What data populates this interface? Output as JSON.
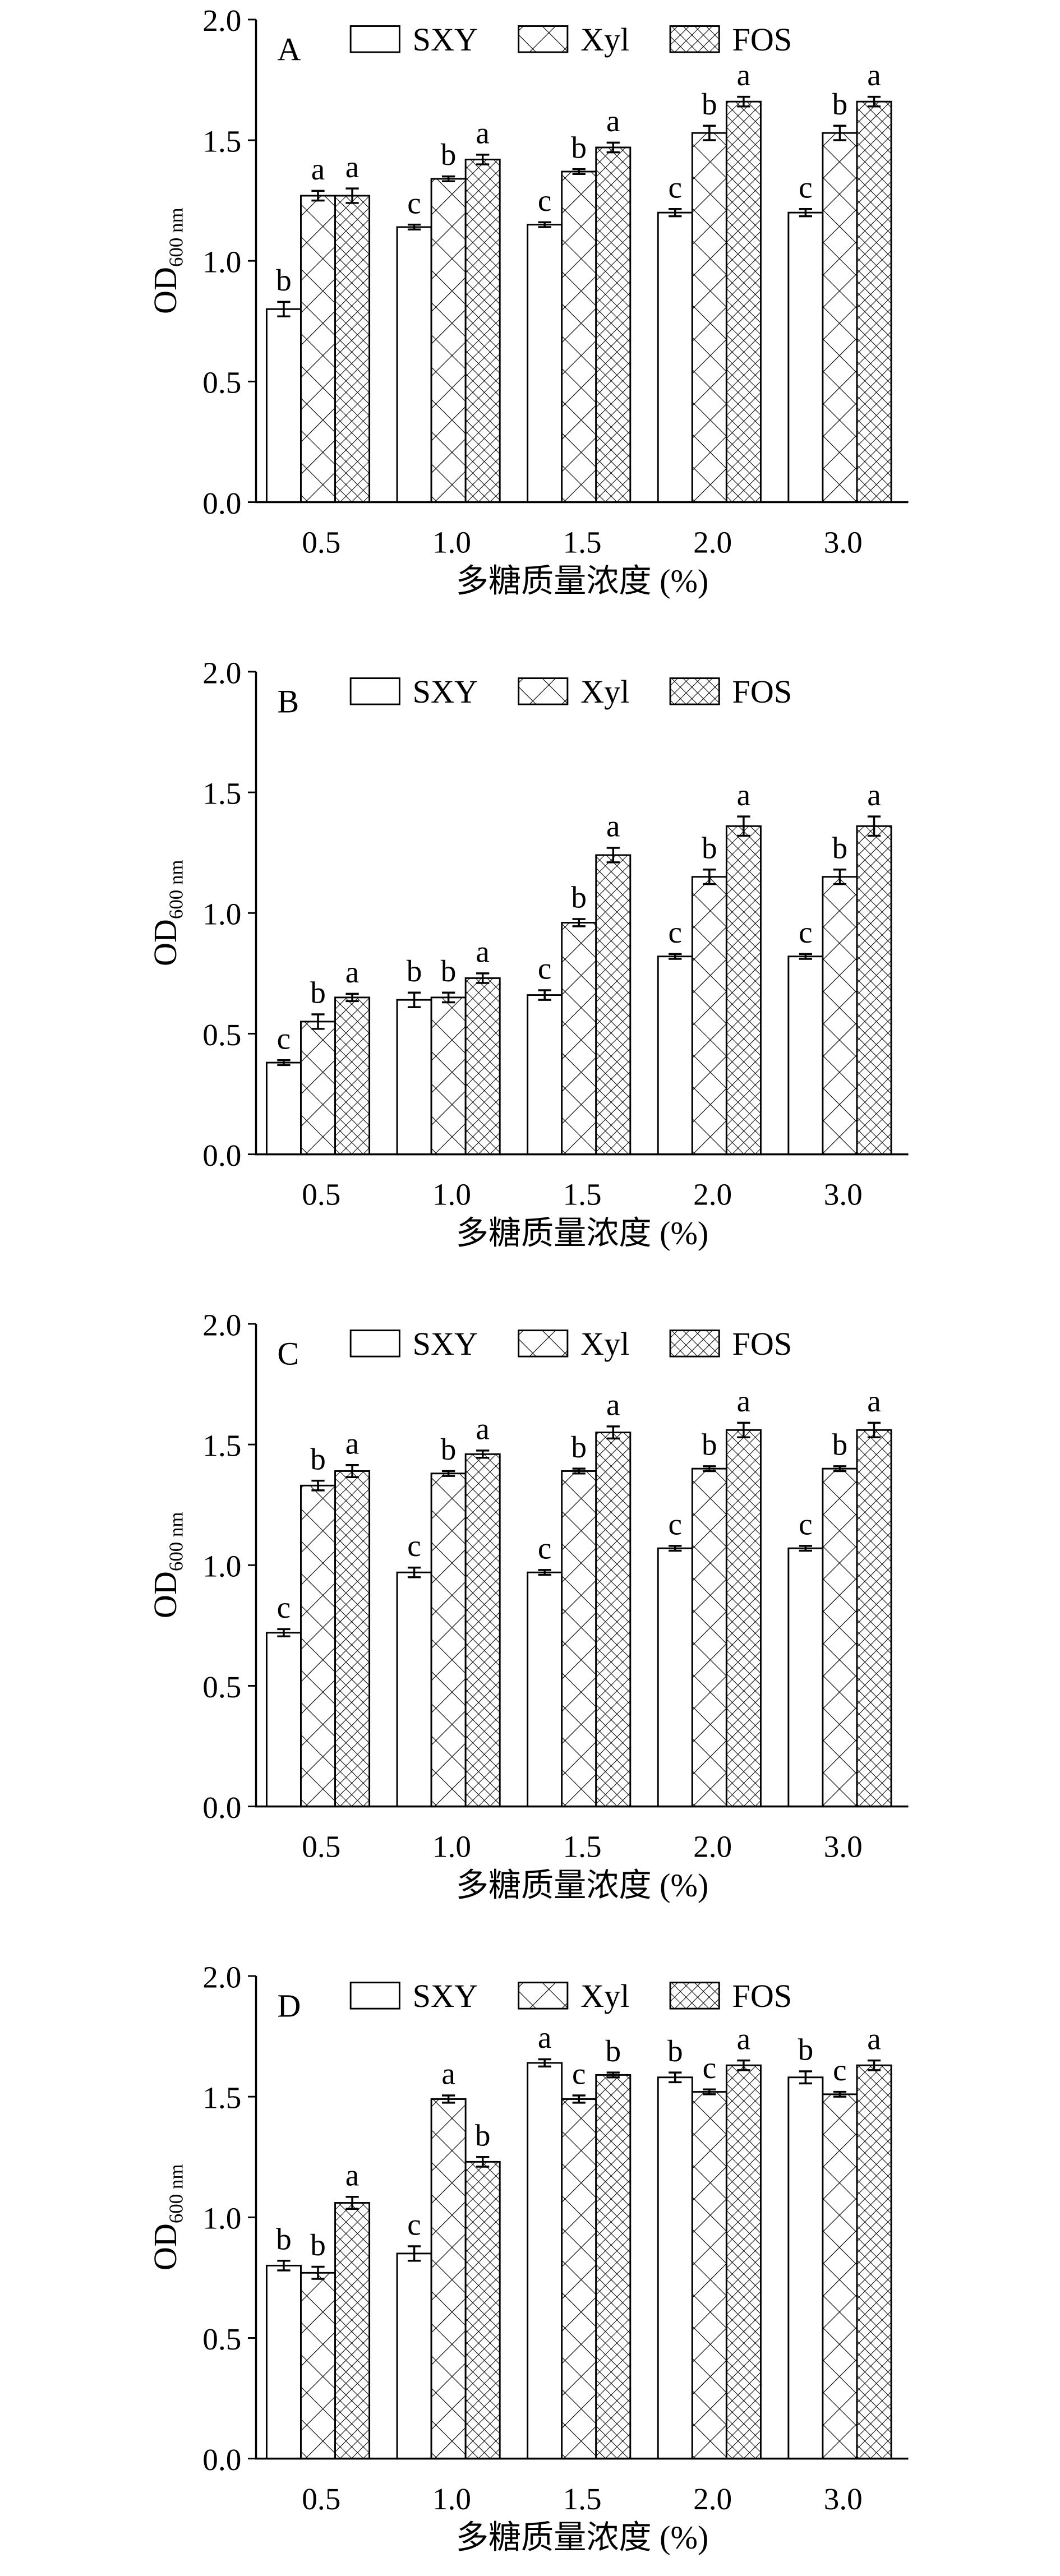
{
  "chart_data": [
    {
      "type": "bar",
      "panel": "A",
      "x_label": "多糖质量浓度 (%)",
      "y_label": "OD",
      "y_label_sub": "600 nm",
      "categories": [
        "0.5",
        "1.0",
        "1.5",
        "2.0",
        "3.0"
      ],
      "ylim": [
        0,
        2
      ],
      "yticks": [
        {
          "value": 0,
          "label": "0.0"
        },
        {
          "value": 0.5,
          "label": "0.5"
        },
        {
          "value": 1,
          "label": "1.0"
        },
        {
          "value": 1.5,
          "label": "1.5"
        },
        {
          "value": 2,
          "label": "2.0"
        }
      ],
      "series": [
        {
          "name": "SXY",
          "color": "#ffffff",
          "hatch": "none",
          "values": [
            0.8,
            1.14,
            1.15,
            1.2,
            1.2
          ],
          "errors": [
            0.03,
            0.01,
            0.01,
            0.015,
            0.015
          ],
          "letters": [
            "b",
            "c",
            "c",
            "c",
            "c"
          ]
        },
        {
          "name": "Xyl",
          "color": "#ffffff",
          "hatch": "cross",
          "values": [
            1.27,
            1.34,
            1.37,
            1.53,
            1.53
          ],
          "errors": [
            0.02,
            0.01,
            0.01,
            0.03,
            0.03
          ],
          "letters": [
            "a",
            "b",
            "b",
            "b",
            "b"
          ]
        },
        {
          "name": "FOS",
          "color": "#ffffff",
          "hatch": "fine-cross",
          "values": [
            1.27,
            1.42,
            1.47,
            1.66,
            1.66
          ],
          "errors": [
            0.03,
            0.02,
            0.02,
            0.02,
            0.02
          ],
          "letters": [
            "a",
            "a",
            "a",
            "a",
            "a"
          ]
        }
      ]
    },
    {
      "type": "bar",
      "panel": "B",
      "x_label": "多糖质量浓度 (%)",
      "y_label": "OD",
      "y_label_sub": "600 nm",
      "categories": [
        "0.5",
        "1.0",
        "1.5",
        "2.0",
        "3.0"
      ],
      "ylim": [
        0,
        2
      ],
      "yticks": [
        {
          "value": 0,
          "label": "0.0"
        },
        {
          "value": 0.5,
          "label": "0.5"
        },
        {
          "value": 1,
          "label": "1.0"
        },
        {
          "value": 1.5,
          "label": "1.5"
        },
        {
          "value": 2,
          "label": "2.0"
        }
      ],
      "series": [
        {
          "name": "SXY",
          "color": "#ffffff",
          "hatch": "none",
          "values": [
            0.38,
            0.64,
            0.66,
            0.82,
            0.82
          ],
          "errors": [
            0.01,
            0.03,
            0.02,
            0.01,
            0.01
          ],
          "letters": [
            "c",
            "b",
            "c",
            "c",
            "c"
          ]
        },
        {
          "name": "Xyl",
          "color": "#ffffff",
          "hatch": "cross",
          "values": [
            0.55,
            0.65,
            0.96,
            1.15,
            1.15
          ],
          "errors": [
            0.03,
            0.02,
            0.015,
            0.03,
            0.03
          ],
          "letters": [
            "b",
            "b",
            "b",
            "b",
            "b"
          ]
        },
        {
          "name": "FOS",
          "color": "#ffffff",
          "hatch": "fine-cross",
          "values": [
            0.65,
            0.73,
            1.24,
            1.36,
            1.36
          ],
          "errors": [
            0.015,
            0.02,
            0.03,
            0.04,
            0.04
          ],
          "letters": [
            "a",
            "a",
            "a",
            "a",
            "a"
          ]
        }
      ]
    },
    {
      "type": "bar",
      "panel": "C",
      "x_label": "多糖质量浓度 (%)",
      "y_label": "OD",
      "y_label_sub": "600 nm",
      "categories": [
        "0.5",
        "1.0",
        "1.5",
        "2.0",
        "3.0"
      ],
      "ylim": [
        0,
        2
      ],
      "yticks": [
        {
          "value": 0,
          "label": "0.0"
        },
        {
          "value": 0.5,
          "label": "0.5"
        },
        {
          "value": 1,
          "label": "1.0"
        },
        {
          "value": 1.5,
          "label": "1.5"
        },
        {
          "value": 2,
          "label": "2.0"
        }
      ],
      "series": [
        {
          "name": "SXY",
          "color": "#ffffff",
          "hatch": "none",
          "values": [
            0.72,
            0.97,
            0.97,
            1.07,
            1.07
          ],
          "errors": [
            0.015,
            0.02,
            0.01,
            0.01,
            0.01
          ],
          "letters": [
            "c",
            "c",
            "c",
            "c",
            "c"
          ]
        },
        {
          "name": "Xyl",
          "color": "#ffffff",
          "hatch": "cross",
          "values": [
            1.33,
            1.38,
            1.39,
            1.4,
            1.4
          ],
          "errors": [
            0.02,
            0.01,
            0.01,
            0.01,
            0.01
          ],
          "letters": [
            "b",
            "b",
            "b",
            "b",
            "b"
          ]
        },
        {
          "name": "FOS",
          "color": "#ffffff",
          "hatch": "fine-cross",
          "values": [
            1.39,
            1.46,
            1.55,
            1.56,
            1.56
          ],
          "errors": [
            0.025,
            0.015,
            0.025,
            0.03,
            0.03
          ],
          "letters": [
            "a",
            "a",
            "a",
            "a",
            "a"
          ]
        }
      ]
    },
    {
      "type": "bar",
      "panel": "D",
      "x_label": "多糖质量浓度 (%)",
      "y_label": "OD",
      "y_label_sub": "600 nm",
      "categories": [
        "0.5",
        "1.0",
        "1.5",
        "2.0",
        "3.0"
      ],
      "ylim": [
        0,
        2
      ],
      "yticks": [
        {
          "value": 0,
          "label": "0.0"
        },
        {
          "value": 0.5,
          "label": "0.5"
        },
        {
          "value": 1,
          "label": "1.0"
        },
        {
          "value": 1.5,
          "label": "1.5"
        },
        {
          "value": 2,
          "label": "2.0"
        }
      ],
      "series": [
        {
          "name": "SXY",
          "color": "#ffffff",
          "hatch": "none",
          "values": [
            0.8,
            0.85,
            1.64,
            1.58,
            1.58
          ],
          "errors": [
            0.02,
            0.03,
            0.015,
            0.02,
            0.025
          ],
          "letters": [
            "b",
            "c",
            "a",
            "b",
            "b"
          ]
        },
        {
          "name": "Xyl",
          "color": "#ffffff",
          "hatch": "cross",
          "values": [
            0.77,
            1.49,
            1.49,
            1.52,
            1.51
          ],
          "errors": [
            0.025,
            0.015,
            0.015,
            0.01,
            0.01
          ],
          "letters": [
            "b",
            "a",
            "c",
            "c",
            "c"
          ]
        },
        {
          "name": "FOS",
          "color": "#ffffff",
          "hatch": "fine-cross",
          "values": [
            1.06,
            1.23,
            1.59,
            1.63,
            1.63
          ],
          "errors": [
            0.025,
            0.02,
            0.01,
            0.02,
            0.02
          ],
          "letters": [
            "a",
            "b",
            "b",
            "a",
            "a"
          ]
        }
      ]
    }
  ]
}
